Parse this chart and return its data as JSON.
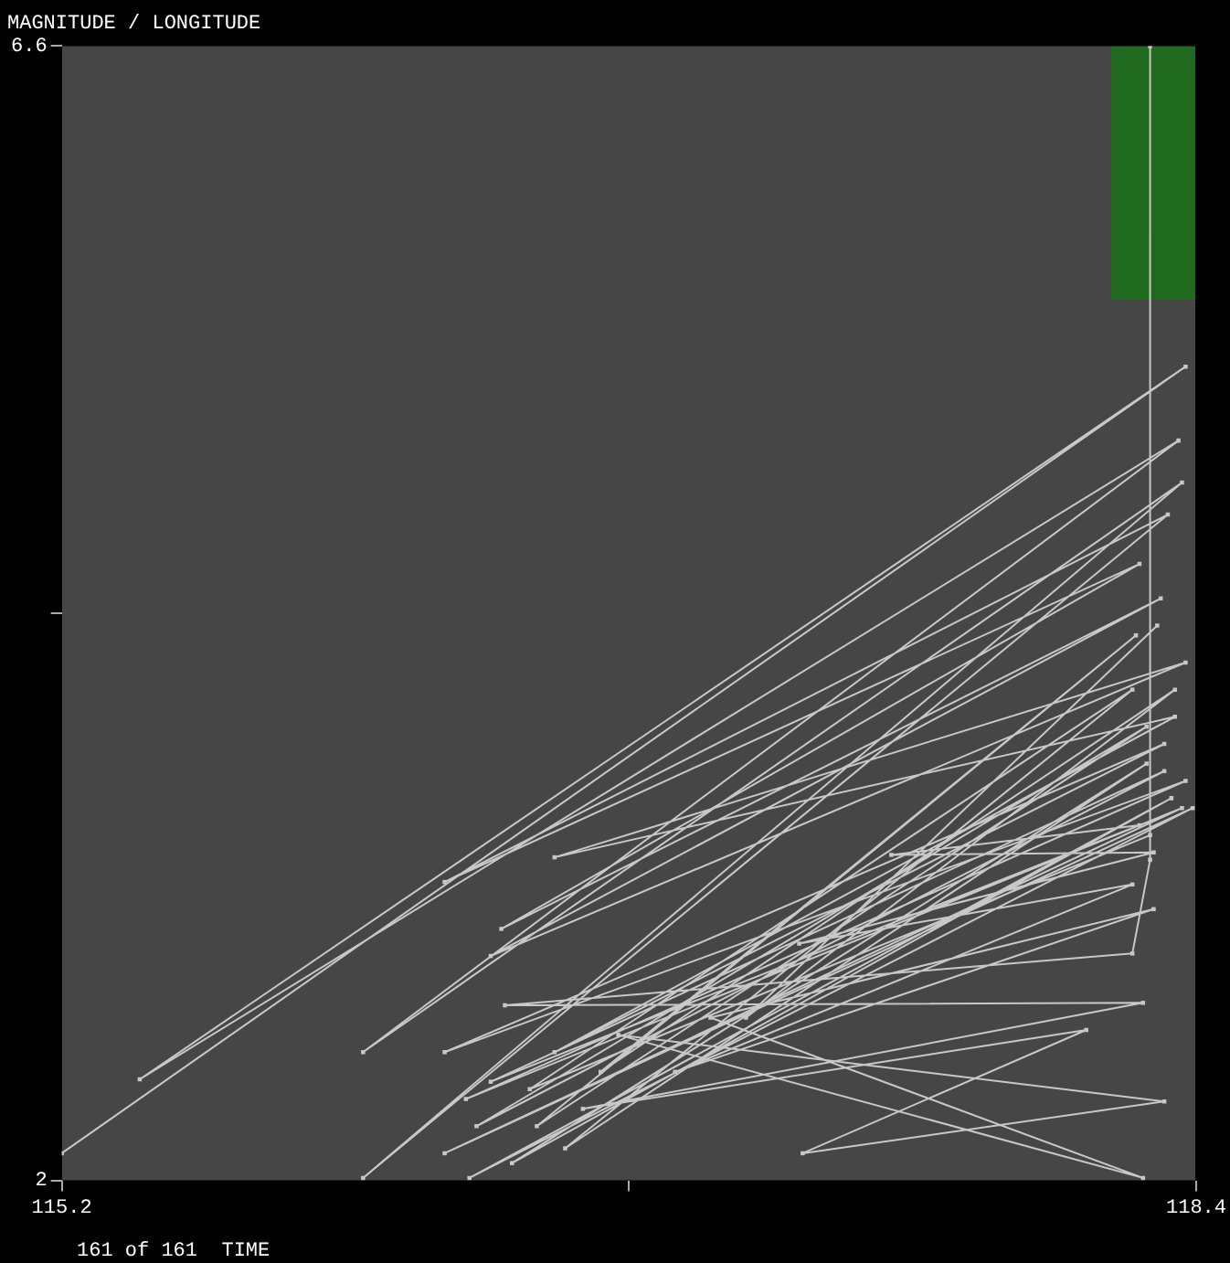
{
  "chart_data": {
    "type": "line",
    "title": "MAGNITUDE / LONGITUDE",
    "annotations": [
      "161 of 161  TIME"
    ],
    "x": [
      115.2,
      118.37,
      115.42,
      118.35,
      116.05,
      118.36,
      116.05,
      118.32,
      116.28,
      118.24,
      116.44,
      118.3,
      116.41,
      118.37,
      116.59,
      118.34,
      116.59,
      118.31,
      116.28,
      118.37,
      116.34,
      118.36,
      116.28,
      118.39,
      116.35,
      118.33,
      116.47,
      118.26,
      116.62,
      118.22,
      116.52,
      118.27,
      118.27,
      118.27,
      118.22,
      116.45,
      118.25,
      116.67,
      118.09,
      117.29,
      118.31,
      116.77,
      118.25,
      117.03,
      118.28,
      116.93,
      118.22,
      117.28,
      118.28,
      117.54,
      118.24,
      116.41,
      118.31,
      116.37,
      118.26,
      116.54,
      118.23,
      116.72,
      118.34,
      117.13,
      118.29
    ],
    "series": [
      {
        "color": "#c8c8c8",
        "values": [
          2.11,
          5.3,
          2.41,
          5.0,
          2.52,
          4.83,
          2.01,
          4.7,
          3.21,
          4.5,
          3.02,
          4.36,
          2.91,
          4.1,
          3.31,
          3.88,
          2.52,
          3.77,
          2.52,
          3.62,
          2.33,
          3.51,
          2.11,
          3.51,
          2.01,
          3.55,
          2.07,
          3.69,
          2.13,
          3.99,
          2.37,
          3.4,
          6.6,
          3.3,
          2.92,
          2.71,
          2.72,
          2.29,
          2.61,
          2.11,
          2.32,
          2.59,
          2.01,
          2.66,
          3.1,
          2.44,
          3.2,
          2.96,
          3.33,
          3.32,
          3.44,
          2.4,
          3.66,
          2.22,
          3.84,
          2.22,
          4.21,
          2.44,
          3.99,
          2.66,
          4.25
        ]
      }
    ],
    "xlim": [
      115.2,
      118.4
    ],
    "xticks": [
      115.2,
      {
        "value": 116.8,
        "label": null
      },
      118.4
    ],
    "ylim": [
      2,
      6.6
    ],
    "yticks": [
      2,
      {
        "value": 4.3,
        "label": null
      },
      6.6
    ],
    "marker": "square",
    "line_style": "solid",
    "grid": false,
    "legend": false
  }
}
